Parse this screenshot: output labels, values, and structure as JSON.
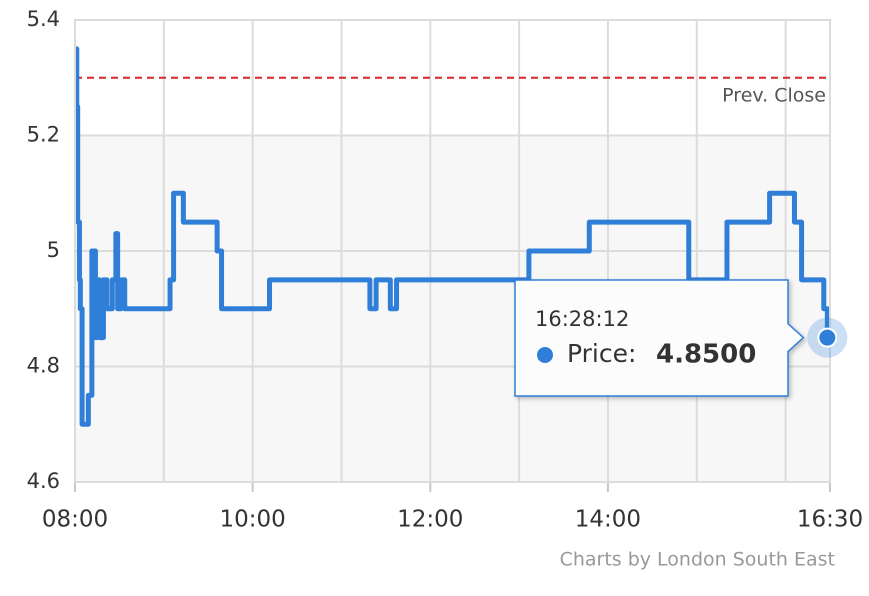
{
  "chart_data": {
    "type": "line",
    "step": true,
    "x": [
      8.0,
      8.02,
      8.03,
      8.05,
      8.06,
      8.08,
      8.15,
      8.19,
      8.23,
      8.25,
      8.28,
      8.32,
      8.36,
      8.42,
      8.46,
      8.48,
      8.52,
      8.56,
      9.07,
      9.11,
      9.22,
      9.6,
      9.65,
      10.19,
      11.32,
      11.39,
      11.55,
      11.62,
      13.11,
      13.79,
      14.91,
      15.34,
      15.82,
      16.1,
      16.18,
      16.43,
      16.47
    ],
    "values": [
      5.35,
      5.25,
      5.05,
      4.95,
      4.9,
      4.7,
      4.75,
      5.0,
      4.85,
      4.95,
      4.85,
      4.95,
      4.9,
      4.95,
      5.03,
      4.9,
      4.95,
      4.9,
      4.95,
      5.1,
      5.05,
      5.0,
      4.9,
      4.95,
      4.9,
      4.95,
      4.9,
      4.95,
      5.0,
      5.05,
      4.95,
      5.05,
      5.1,
      5.05,
      4.95,
      4.9,
      4.85
    ],
    "color": "#2f7ed8",
    "xlim": [
      8,
      16.5
    ],
    "xticks": [
      {
        "value": 8,
        "label": "08:00"
      },
      {
        "value": 10,
        "label": "10:00"
      },
      {
        "value": 12,
        "label": "12:00"
      },
      {
        "value": 14,
        "label": "14:00"
      },
      {
        "value": 16.5,
        "label": "16:30"
      }
    ],
    "xminor": [
      9,
      11,
      13,
      15,
      16
    ],
    "ylim": [
      4.6,
      5.4
    ],
    "yticks": [
      5.4,
      5.2,
      5,
      4.8,
      4.6
    ],
    "grid": true,
    "band": [
      4.6,
      5.2
    ],
    "reference_line": {
      "value": 5.3,
      "label": "Prev. Close",
      "color": "#d62728"
    },
    "tooltip": {
      "time": "16:28:12",
      "label": "Price:",
      "value_label": "4.8500"
    },
    "credit": "Charts by London South East"
  }
}
